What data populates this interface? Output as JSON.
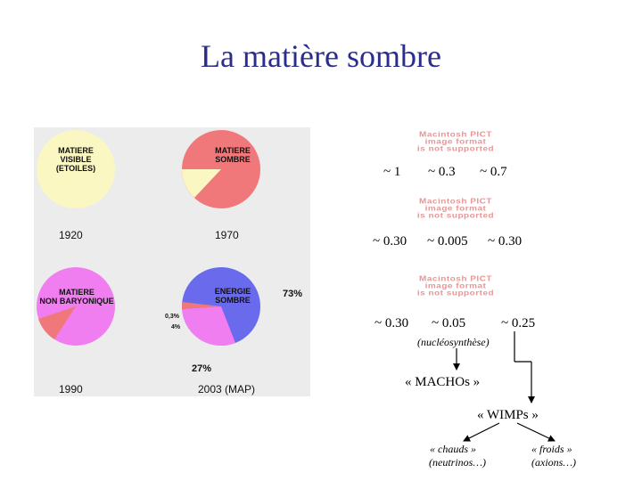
{
  "title": "La matière sombre",
  "pies": [
    {
      "label_lines": [
        "MATIERE",
        "VISIBLE",
        "(ETOILES)"
      ],
      "year": "1920",
      "color": "#fbf7c2"
    },
    {
      "label_lines": [
        "MATIERE",
        "SOMBRE"
      ],
      "year": "1970",
      "color": "#f0787a",
      "slice_color": "#fbf7c2"
    },
    {
      "label_lines": [
        "MATIERE",
        "NON BARYONIQUE"
      ],
      "year": "1990",
      "color": "#f07ef0",
      "slice_color": "#f0787a"
    },
    {
      "label_lines": [
        "ENERGIE",
        "SOMBRE"
      ],
      "year": "2003 (MAP)",
      "color": "#6a6aec",
      "slice_color": "#f07ef0"
    }
  ],
  "pie4_annotations": {
    "pct_big": "73%",
    "pct_small_1": "0,3%",
    "pct_small_2": "4%",
    "pct_bottom": "27%"
  },
  "pict_placeholder": {
    "line1": "Macintosh PICT",
    "line2": "image format",
    "line3": "is not supported"
  },
  "row1": [
    "~ 1",
    "~ 0.3",
    "~ 0.7"
  ],
  "row2": [
    "~ 0.30",
    "~ 0.005",
    "~ 0.30"
  ],
  "row3": [
    "~ 0.30",
    "~ 0.05",
    "~ 0.25"
  ],
  "nucleosynthese": "(nucléosynthèse)",
  "machos": "« MACHOs »",
  "wimps": "« WIMPs »",
  "chauds_1": "« chauds »",
  "chauds_2": "(neutrinos…)",
  "froids_1": "« froids »",
  "froids_2": "(axions…)",
  "colors": {
    "title": "#2b2d8c",
    "panel": "#ececec"
  }
}
